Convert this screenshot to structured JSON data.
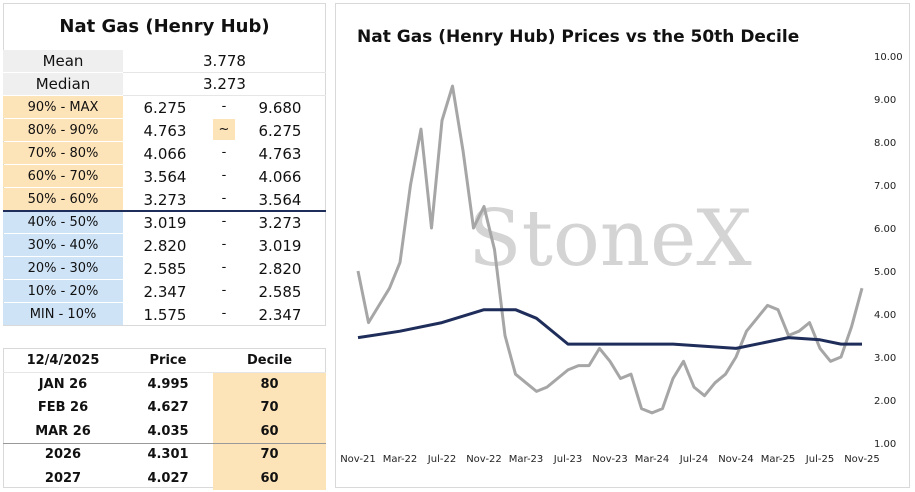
{
  "tables": [
    {
      "title": "Nat Gas (Henry Hub)",
      "stats": [
        [
          "Mean",
          "3.778"
        ],
        [
          "Median",
          "3.273"
        ]
      ],
      "deciles": [
        [
          "90% - MAX",
          "6.275",
          "-",
          "9.680"
        ],
        [
          "80% - 90%",
          "4.763",
          "~",
          "6.275"
        ],
        [
          "70% - 80%",
          "4.066",
          "-",
          "4.763"
        ],
        [
          "60% - 70%",
          "3.564",
          "-",
          "4.066"
        ],
        [
          "50% - 60%",
          "3.273",
          "-",
          "3.564"
        ],
        [
          "40% - 50%",
          "3.019",
          "-",
          "3.273"
        ],
        [
          "30% - 40%",
          "2.820",
          "-",
          "3.019"
        ],
        [
          "20% - 30%",
          "2.585",
          "-",
          "2.820"
        ],
        [
          "10% - 20%",
          "2.347",
          "-",
          "2.585"
        ],
        [
          "MIN - 10%",
          "1.575",
          "-",
          "2.347"
        ]
      ]
    },
    {
      "header": [
        "12/4/2025",
        "Price",
        "Decile"
      ],
      "rows": [
        [
          "JAN 26",
          "4.995",
          "80"
        ],
        [
          "FEB 26",
          "4.627",
          "70"
        ],
        [
          "MAR 26",
          "4.035",
          "60"
        ],
        [
          "2026",
          "4.301",
          "70"
        ],
        [
          "2027",
          "4.027",
          "60"
        ]
      ]
    }
  ],
  "chart_data": {
    "type": "line",
    "title": "Nat Gas (Henry Hub) Prices vs the 50th Decile",
    "watermark": "StoneX",
    "xlim": [
      0,
      48
    ],
    "xticks": [
      {
        "value": 0,
        "label": "Nov-21"
      },
      {
        "value": 4,
        "label": "Mar-22"
      },
      {
        "value": 8,
        "label": "Jul-22"
      },
      {
        "value": 12,
        "label": "Nov-22"
      },
      {
        "value": 16,
        "label": "Mar-23"
      },
      {
        "value": 20,
        "label": "Jul-23"
      },
      {
        "value": 24,
        "label": "Nov-23"
      },
      {
        "value": 28,
        "label": "Mar-24"
      },
      {
        "value": 32,
        "label": "Jul-24"
      },
      {
        "value": 36,
        "label": "Nov-24"
      },
      {
        "value": 40,
        "label": "Mar-25"
      },
      {
        "value": 44,
        "label": "Jul-25"
      },
      {
        "value": 48,
        "label": "Nov-25"
      }
    ],
    "ylim": [
      1,
      10
    ],
    "yticks": [
      {
        "value": 1,
        "label": "1.00"
      },
      {
        "value": 2,
        "label": "2.00"
      },
      {
        "value": 3,
        "label": "3.00"
      },
      {
        "value": 4,
        "label": "4.00"
      },
      {
        "value": 5,
        "label": "5.00"
      },
      {
        "value": 6,
        "label": "6.00"
      },
      {
        "value": 7,
        "label": "7.00"
      },
      {
        "value": 8,
        "label": "8.00"
      },
      {
        "value": 9,
        "label": "9.00"
      },
      {
        "value": 10,
        "label": "10.00"
      }
    ],
    "series": [
      {
        "color": "#a6a6a6",
        "x": [
          0,
          1,
          2,
          3,
          4,
          5,
          6,
          7,
          8,
          9,
          10,
          11,
          12,
          13,
          14,
          15,
          16,
          17,
          18,
          19,
          20,
          21,
          22,
          23,
          24,
          25,
          26,
          27,
          28,
          29,
          30,
          31,
          32,
          33,
          34,
          35,
          36,
          37,
          38,
          39,
          40,
          41,
          42,
          43,
          44,
          45,
          46,
          47,
          48
        ],
        "values": [
          5.0,
          3.8,
          4.2,
          4.6,
          5.2,
          7.0,
          8.3,
          6.0,
          8.5,
          9.3,
          7.8,
          6.0,
          6.5,
          5.5,
          3.5,
          2.6,
          2.4,
          2.2,
          2.3,
          2.5,
          2.7,
          2.8,
          2.8,
          3.2,
          2.9,
          2.5,
          2.6,
          1.8,
          1.7,
          1.8,
          2.5,
          2.9,
          2.3,
          2.1,
          2.4,
          2.6,
          3.0,
          3.6,
          3.9,
          4.2,
          4.1,
          3.5,
          3.6,
          3.8,
          3.2,
          2.9,
          3.0,
          3.7,
          4.6
        ]
      },
      {
        "color": "#1f2d5a",
        "x": [
          0,
          4,
          8,
          12,
          15,
          17,
          19,
          20,
          30,
          36,
          41,
          44,
          46,
          48
        ],
        "values": [
          3.45,
          3.6,
          3.8,
          4.1,
          4.1,
          3.9,
          3.5,
          3.3,
          3.3,
          3.2,
          3.45,
          3.4,
          3.3,
          3.3
        ]
      }
    ]
  }
}
